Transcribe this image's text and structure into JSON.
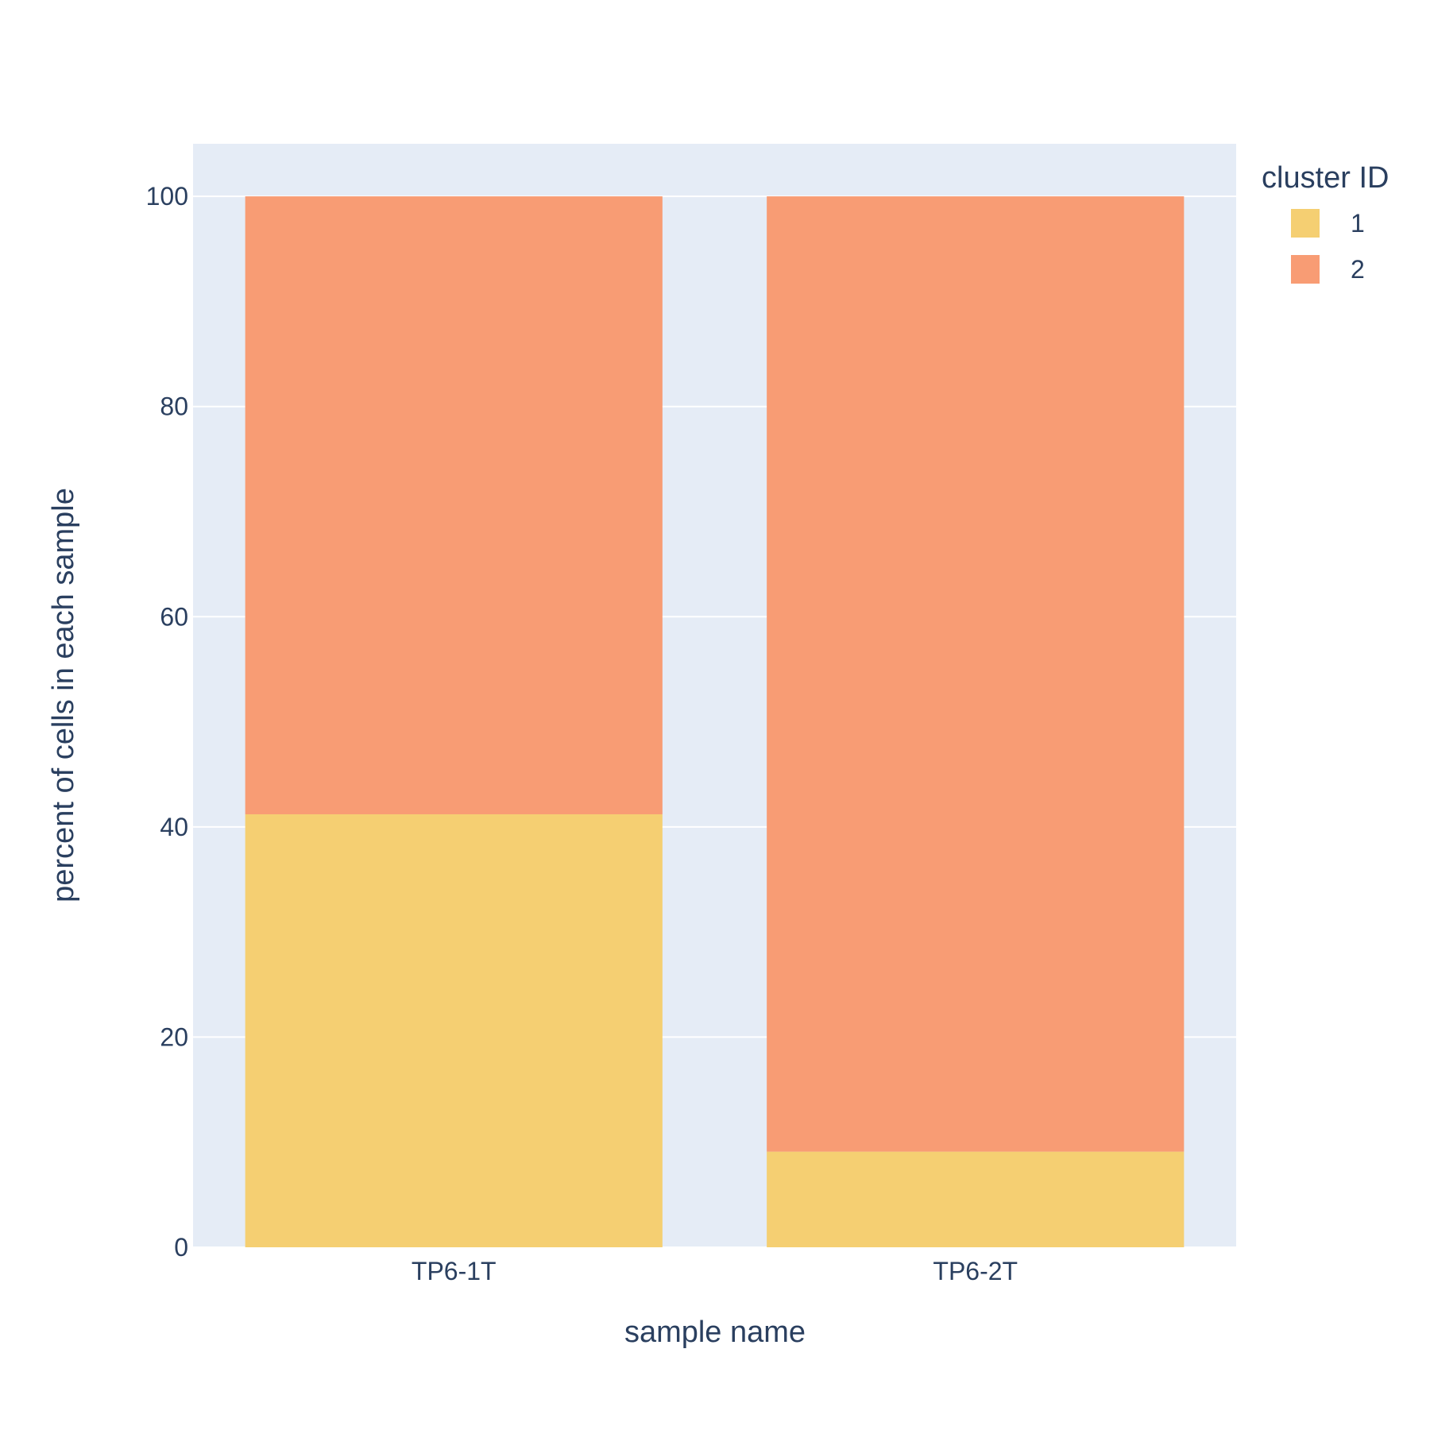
{
  "chart_data": {
    "type": "bar",
    "barmode": "stack",
    "categories": [
      "TP6-1T",
      "TP6-2T"
    ],
    "series": [
      {
        "name": "1",
        "values": [
          41.2,
          9.1
        ],
        "color": "#f5cf72"
      },
      {
        "name": "2",
        "values": [
          58.8,
          90.9
        ],
        "color": "#f89c74"
      }
    ],
    "xlabel": "sample name",
    "ylabel": "percent of cells in each sample",
    "ylim": [
      0,
      105
    ],
    "yticks": [
      0,
      20,
      40,
      60,
      80,
      100
    ],
    "grid": true,
    "legend": {
      "title": "cluster ID",
      "position": "right"
    },
    "colors": {
      "plot_background": "#e5ecf6",
      "text": "#2a3f5f",
      "gridline": "#ffffff"
    }
  }
}
